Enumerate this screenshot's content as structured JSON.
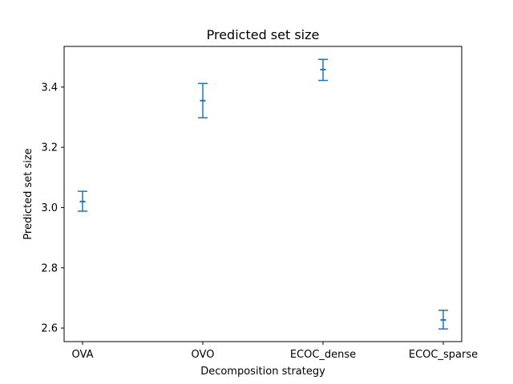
{
  "chart_data": {
    "type": "errorbar",
    "title": "Predicted set size",
    "xlabel": "Decomposition strategy",
    "ylabel": "Predicted set size",
    "categories": [
      "OVA",
      "OVO",
      "ECOC_dense",
      "ECOC_sparse"
    ],
    "series": [
      {
        "values": [
          3.02,
          3.355,
          3.458,
          2.627
        ],
        "lower": [
          2.988,
          3.298,
          3.422,
          2.597
        ],
        "upper": [
          3.054,
          3.412,
          3.492,
          2.659
        ]
      }
    ],
    "ylim": [
      2.555,
      3.535
    ],
    "yticks": [
      "2.6",
      "2.8",
      "3.0",
      "3.2",
      "3.4"
    ],
    "grid": false,
    "color": "#1f77b4"
  }
}
